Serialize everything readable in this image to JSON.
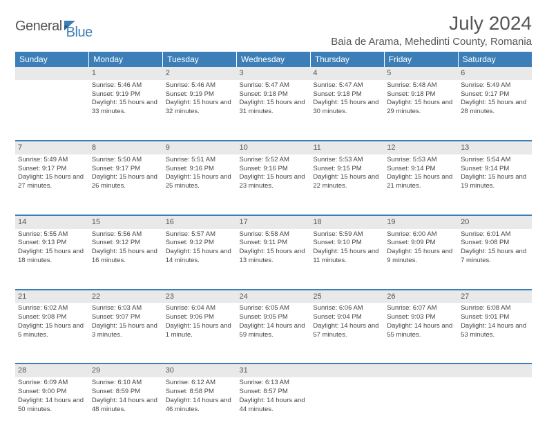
{
  "logo": {
    "part1": "General",
    "part2": "Blue"
  },
  "title": "July 2024",
  "location": "Baia de Arama, Mehedinti County, Romania",
  "colors": {
    "header_bg": "#3c7fb8",
    "header_text": "#ffffff",
    "daynum_bg": "#e9e9e9",
    "text": "#444444",
    "title_text": "#555555",
    "separator": "#3c7fb8"
  },
  "day_headers": [
    "Sunday",
    "Monday",
    "Tuesday",
    "Wednesday",
    "Thursday",
    "Friday",
    "Saturday"
  ],
  "weeks": [
    {
      "nums": [
        "",
        "1",
        "2",
        "3",
        "4",
        "5",
        "6"
      ],
      "cells": [
        "",
        "Sunrise: 5:46 AM\nSunset: 9:19 PM\nDaylight: 15 hours and 33 minutes.",
        "Sunrise: 5:46 AM\nSunset: 9:19 PM\nDaylight: 15 hours and 32 minutes.",
        "Sunrise: 5:47 AM\nSunset: 9:18 PM\nDaylight: 15 hours and 31 minutes.",
        "Sunrise: 5:47 AM\nSunset: 9:18 PM\nDaylight: 15 hours and 30 minutes.",
        "Sunrise: 5:48 AM\nSunset: 9:18 PM\nDaylight: 15 hours and 29 minutes.",
        "Sunrise: 5:49 AM\nSunset: 9:17 PM\nDaylight: 15 hours and 28 minutes."
      ]
    },
    {
      "nums": [
        "7",
        "8",
        "9",
        "10",
        "11",
        "12",
        "13"
      ],
      "cells": [
        "Sunrise: 5:49 AM\nSunset: 9:17 PM\nDaylight: 15 hours and 27 minutes.",
        "Sunrise: 5:50 AM\nSunset: 9:17 PM\nDaylight: 15 hours and 26 minutes.",
        "Sunrise: 5:51 AM\nSunset: 9:16 PM\nDaylight: 15 hours and 25 minutes.",
        "Sunrise: 5:52 AM\nSunset: 9:16 PM\nDaylight: 15 hours and 23 minutes.",
        "Sunrise: 5:53 AM\nSunset: 9:15 PM\nDaylight: 15 hours and 22 minutes.",
        "Sunrise: 5:53 AM\nSunset: 9:14 PM\nDaylight: 15 hours and 21 minutes.",
        "Sunrise: 5:54 AM\nSunset: 9:14 PM\nDaylight: 15 hours and 19 minutes."
      ]
    },
    {
      "nums": [
        "14",
        "15",
        "16",
        "17",
        "18",
        "19",
        "20"
      ],
      "cells": [
        "Sunrise: 5:55 AM\nSunset: 9:13 PM\nDaylight: 15 hours and 18 minutes.",
        "Sunrise: 5:56 AM\nSunset: 9:12 PM\nDaylight: 15 hours and 16 minutes.",
        "Sunrise: 5:57 AM\nSunset: 9:12 PM\nDaylight: 15 hours and 14 minutes.",
        "Sunrise: 5:58 AM\nSunset: 9:11 PM\nDaylight: 15 hours and 13 minutes.",
        "Sunrise: 5:59 AM\nSunset: 9:10 PM\nDaylight: 15 hours and 11 minutes.",
        "Sunrise: 6:00 AM\nSunset: 9:09 PM\nDaylight: 15 hours and 9 minutes.",
        "Sunrise: 6:01 AM\nSunset: 9:08 PM\nDaylight: 15 hours and 7 minutes."
      ]
    },
    {
      "nums": [
        "21",
        "22",
        "23",
        "24",
        "25",
        "26",
        "27"
      ],
      "cells": [
        "Sunrise: 6:02 AM\nSunset: 9:08 PM\nDaylight: 15 hours and 5 minutes.",
        "Sunrise: 6:03 AM\nSunset: 9:07 PM\nDaylight: 15 hours and 3 minutes.",
        "Sunrise: 6:04 AM\nSunset: 9:06 PM\nDaylight: 15 hours and 1 minute.",
        "Sunrise: 6:05 AM\nSunset: 9:05 PM\nDaylight: 14 hours and 59 minutes.",
        "Sunrise: 6:06 AM\nSunset: 9:04 PM\nDaylight: 14 hours and 57 minutes.",
        "Sunrise: 6:07 AM\nSunset: 9:03 PM\nDaylight: 14 hours and 55 minutes.",
        "Sunrise: 6:08 AM\nSunset: 9:01 PM\nDaylight: 14 hours and 53 minutes."
      ]
    },
    {
      "nums": [
        "28",
        "29",
        "30",
        "31",
        "",
        "",
        ""
      ],
      "cells": [
        "Sunrise: 6:09 AM\nSunset: 9:00 PM\nDaylight: 14 hours and 50 minutes.",
        "Sunrise: 6:10 AM\nSunset: 8:59 PM\nDaylight: 14 hours and 48 minutes.",
        "Sunrise: 6:12 AM\nSunset: 8:58 PM\nDaylight: 14 hours and 46 minutes.",
        "Sunrise: 6:13 AM\nSunset: 8:57 PM\nDaylight: 14 hours and 44 minutes.",
        "",
        "",
        ""
      ]
    }
  ]
}
